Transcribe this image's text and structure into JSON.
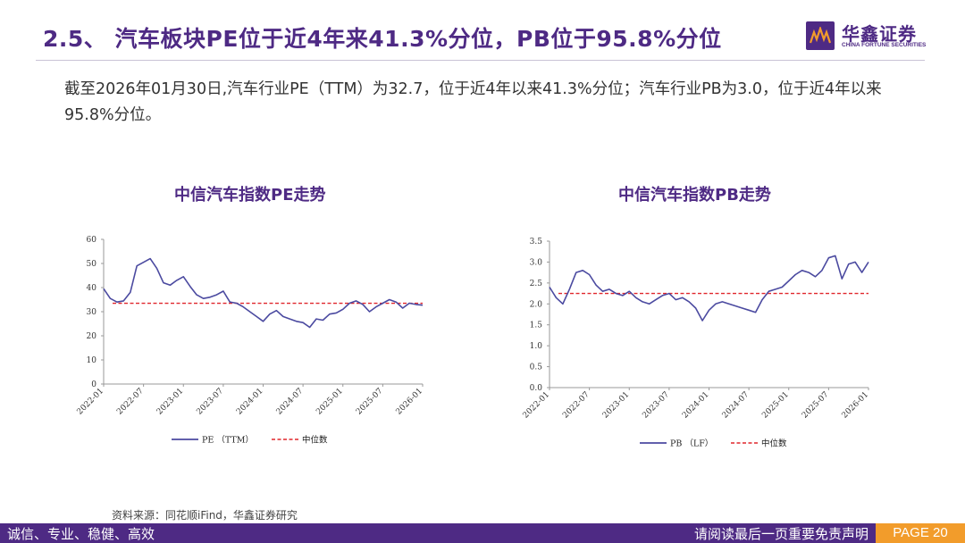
{
  "header": {
    "title": "2.5、 汽车板块PE位于近4年来41.3%分位，PB位于95.8%分位",
    "logo_cn": "华鑫证券",
    "logo_en": "CHINA FORTUNE SECURITIES",
    "accent_color": "#4e2a84"
  },
  "summary": "截至2026年01月30日,汽车行业PE（TTM）为32.7，位于近4年以来41.3%分位；汽车行业PB为3.0，位于近4年以来95.8%分位。",
  "source": "资料来源：同花顺iFind，华鑫证券研究",
  "footer": {
    "left": "诚信、专业、稳健、高效",
    "right": "请阅读最后一页重要免责声明",
    "page": "PAGE 20",
    "page_color": "#f29c2b"
  },
  "chart_data": [
    {
      "type": "line",
      "title": "中信汽车指数PE走势",
      "ylim": [
        0,
        60
      ],
      "yticks": [
        "0",
        "10",
        "20",
        "30",
        "40",
        "50",
        "60"
      ],
      "xlabels": [
        "2022-01",
        "2022-07",
        "2023-01",
        "2023-07",
        "2024-01",
        "2024-07",
        "2025-01",
        "2025-07",
        "2026-01"
      ],
      "grid": false,
      "legend_position": "bottom",
      "series": [
        {
          "name": "PE （TTM）",
          "color": "#4b4aa0",
          "x": [
            "2022-01",
            "2022-02",
            "2022-03",
            "2022-04",
            "2022-05",
            "2022-06",
            "2022-07",
            "2022-08",
            "2022-09",
            "2022-10",
            "2022-11",
            "2022-12",
            "2023-01",
            "2023-02",
            "2023-03",
            "2023-04",
            "2023-05",
            "2023-06",
            "2023-07",
            "2023-08",
            "2023-09",
            "2023-10",
            "2023-11",
            "2023-12",
            "2024-01",
            "2024-02",
            "2024-03",
            "2024-04",
            "2024-05",
            "2024-06",
            "2024-07",
            "2024-08",
            "2024-09",
            "2024-10",
            "2024-11",
            "2024-12",
            "2025-01",
            "2025-02",
            "2025-03",
            "2025-04",
            "2025-05",
            "2025-06",
            "2025-07",
            "2025-08",
            "2025-09",
            "2025-10",
            "2025-11",
            "2025-12",
            "2026-01"
          ],
          "values": [
            39.5,
            35.5,
            34,
            34.5,
            38,
            49,
            50.5,
            52,
            48,
            42,
            41,
            43,
            44.5,
            40.5,
            37,
            35.5,
            36,
            37,
            38.5,
            34,
            33.5,
            32,
            30,
            28,
            26,
            29,
            30.5,
            28,
            27,
            26,
            25.5,
            23.5,
            27,
            26.5,
            29,
            29.5,
            31,
            33.5,
            34.5,
            33,
            30,
            32,
            33.5,
            35,
            34,
            31.5,
            33.5,
            33,
            32.7
          ]
        },
        {
          "name": "中位数",
          "color": "#e0262c",
          "median": 33.5
        }
      ]
    },
    {
      "type": "line",
      "title": "中信汽车指数PB走势",
      "ylim": [
        0,
        3.5
      ],
      "yticks": [
        "0.0",
        "0.5",
        "1.0",
        "1.5",
        "2.0",
        "2.5",
        "3.0",
        "3.5"
      ],
      "xlabels": [
        "2022-01",
        "2022-07",
        "2023-01",
        "2023-07",
        "2024-01",
        "2024-07",
        "2025-01",
        "2025-07",
        "2026-01"
      ],
      "grid": false,
      "legend_position": "bottom",
      "series": [
        {
          "name": "PB （LF）",
          "color": "#4b4aa0",
          "x": [
            "2022-01",
            "2022-02",
            "2022-03",
            "2022-04",
            "2022-05",
            "2022-06",
            "2022-07",
            "2022-08",
            "2022-09",
            "2022-10",
            "2022-11",
            "2022-12",
            "2023-01",
            "2023-02",
            "2023-03",
            "2023-04",
            "2023-05",
            "2023-06",
            "2023-07",
            "2023-08",
            "2023-09",
            "2023-10",
            "2023-11",
            "2023-12",
            "2024-01",
            "2024-02",
            "2024-03",
            "2024-04",
            "2024-05",
            "2024-06",
            "2024-07",
            "2024-08",
            "2024-09",
            "2024-10",
            "2024-11",
            "2024-12",
            "2025-01",
            "2025-02",
            "2025-03",
            "2025-04",
            "2025-05",
            "2025-06",
            "2025-07",
            "2025-08",
            "2025-09",
            "2025-10",
            "2025-11",
            "2025-12",
            "2026-01"
          ],
          "values": [
            2.4,
            2.15,
            2.0,
            2.35,
            2.75,
            2.8,
            2.7,
            2.45,
            2.3,
            2.35,
            2.25,
            2.2,
            2.3,
            2.15,
            2.05,
            2.0,
            2.1,
            2.2,
            2.25,
            2.1,
            2.15,
            2.05,
            1.9,
            1.6,
            1.85,
            2.0,
            2.05,
            2.0,
            1.95,
            1.9,
            1.85,
            1.8,
            2.1,
            2.3,
            2.35,
            2.4,
            2.55,
            2.7,
            2.8,
            2.75,
            2.65,
            2.8,
            3.1,
            3.15,
            2.6,
            2.95,
            3.0,
            2.75,
            3.0
          ]
        },
        {
          "name": "中位数",
          "color": "#e0262c",
          "median": 2.25
        }
      ]
    }
  ]
}
